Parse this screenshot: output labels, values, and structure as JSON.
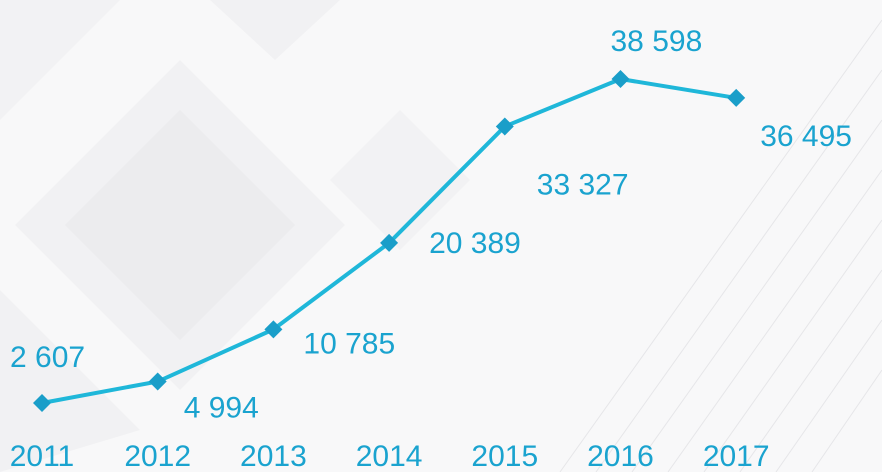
{
  "chart_data": {
    "type": "line",
    "categories": [
      "2011",
      "2012",
      "2013",
      "2014",
      "2015",
      "2016",
      "2017"
    ],
    "values": [
      2607,
      4994,
      10785,
      20389,
      33327,
      38598,
      36495
    ],
    "value_labels": [
      "2 607",
      "4 994",
      "10 785",
      "20 389",
      "33 327",
      "38 598",
      "36 495"
    ],
    "color": "#1fb7d9",
    "marker_color": "#1a9ec9",
    "label_color": "#1aa3cf"
  }
}
